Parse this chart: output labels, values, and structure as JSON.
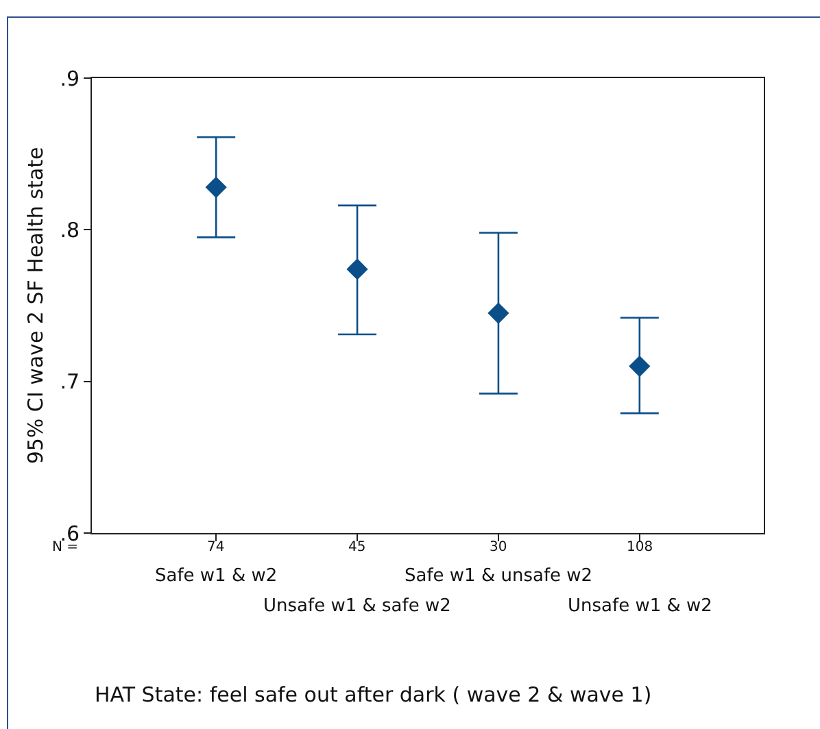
{
  "chart_data": {
    "type": "scatter",
    "categories": [
      "Safe w1 & w2",
      "Unsafe w1 & safe w2",
      "Safe w1 & unsafe w2",
      "Unsafe w1 & w2"
    ],
    "values": [
      0.828,
      0.774,
      0.745,
      0.71
    ],
    "errors": [
      [
        0.795,
        0.861
      ],
      [
        0.731,
        0.816
      ],
      [
        0.692,
        0.798
      ],
      [
        0.679,
        0.742
      ]
    ],
    "color": "#0b4f8a",
    "marker": "diamond",
    "xlabel": "HAT State: feel safe out after dark ( wave 2 & wave 1)",
    "ylabel": "95% CI wave 2 SF Health state",
    "ylim": [
      0.6,
      0.9
    ],
    "yticks": [
      {
        "value": 0.6,
        "label": ".6"
      },
      {
        "value": 0.7,
        "label": ".7"
      },
      {
        "value": 0.8,
        "label": ".8"
      },
      {
        "value": 0.9,
        "label": ".9"
      }
    ],
    "annotations": [
      "N =",
      "74",
      "45",
      "30",
      "108"
    ],
    "grid": false,
    "legend": false
  }
}
